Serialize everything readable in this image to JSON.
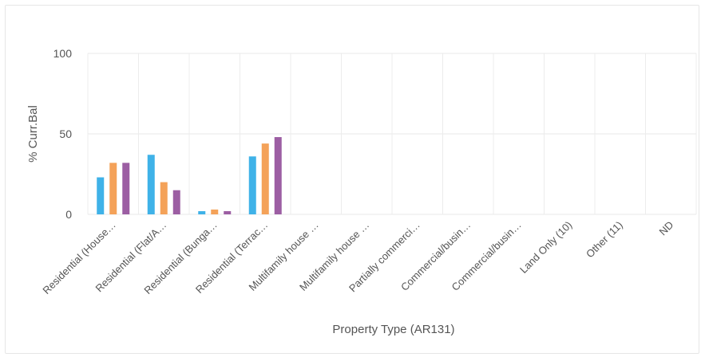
{
  "chart_data": {
    "type": "bar",
    "title": "",
    "xlabel": "Property Type (AR131)",
    "ylabel": "% Curr.Bal",
    "ylim": [
      0,
      100
    ],
    "yticks": [
      "0",
      "50",
      "100"
    ],
    "categories": [
      "Residential (House…",
      "Residential (Flat/A…",
      "Residential (Bunga…",
      "Residential (Terrac…",
      "Multifamily house …",
      "Multifamily house …",
      "Partially commerci…",
      "Commercial/busin…",
      "Commercial/busin…",
      "Land Only (10)",
      "Other (11)",
      "ND"
    ],
    "series": [
      {
        "color": "#3fb2e8",
        "values": [
          23,
          37,
          2,
          36,
          0,
          0,
          0,
          0,
          0,
          0,
          0,
          0
        ]
      },
      {
        "color": "#f4a259",
        "values": [
          32,
          20,
          3,
          44,
          0,
          0,
          0,
          0,
          0,
          0,
          0,
          0
        ]
      },
      {
        "color": "#9c5ea3",
        "values": [
          32,
          15,
          2,
          48,
          0,
          0,
          0,
          0,
          0,
          0,
          0,
          0
        ]
      }
    ],
    "grid": true,
    "legend": "none"
  }
}
